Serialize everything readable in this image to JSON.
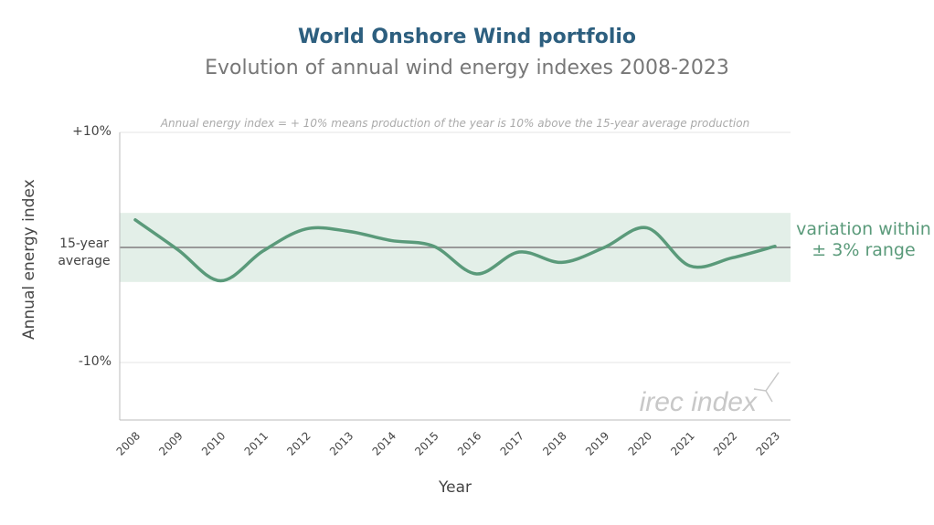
{
  "chart_data": {
    "type": "line",
    "title": "World Onshore Wind portfolio",
    "subtitle": "Evolution of annual wind energy indexes 2008-2023",
    "note": "Annual energy index = + 10% means production of the year is 10% above the 15-year average production",
    "xlabel": "Year",
    "ylabel": "Annual energy index",
    "y_ticks": [
      {
        "value": 10,
        "label": "+10%"
      },
      {
        "value": 0,
        "label": "15-year average"
      },
      {
        "value": -10,
        "label": "-10%"
      }
    ],
    "ylim": [
      -15,
      10
    ],
    "categories": [
      "2008",
      "2009",
      "2010",
      "2011",
      "2012",
      "2013",
      "2014",
      "2015",
      "2016",
      "2017",
      "2018",
      "2019",
      "2020",
      "2021",
      "2022",
      "2023"
    ],
    "series": [
      {
        "name": "Annual energy index",
        "values": [
          2.4,
          -0.2,
          -2.9,
          -0.3,
          1.6,
          1.4,
          0.6,
          0.1,
          -2.3,
          -0.4,
          -1.3,
          0.0,
          1.7,
          -1.6,
          -0.9,
          0.1
        ]
      }
    ],
    "band": {
      "low": -3,
      "high": 3,
      "label": "variation within ± 3% range"
    },
    "watermark": "irec index",
    "colors": {
      "line": "#5a9a7a",
      "band": "#e3efe8",
      "avg": "#999999"
    }
  }
}
